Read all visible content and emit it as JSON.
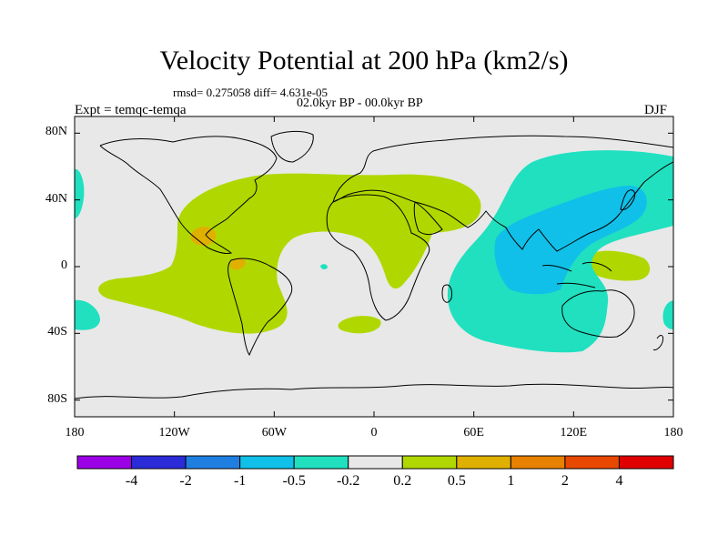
{
  "figure": {
    "title": "Velocity Potential at 200 hPa (km2/s)",
    "stats_text": "rmsd= 0.275058 diff= 4.631e-05",
    "experiment_text": "Expt = temqc-temqa",
    "period_text": "02.0kyr BP - 00.0kyr BP",
    "season": "DJF"
  },
  "map": {
    "projection": "cylindrical-equidistant",
    "lon_range": [
      -180,
      180
    ],
    "lat_range": [
      -90,
      90
    ],
    "lat_ticks": [
      {
        "value": 80,
        "label": "80N"
      },
      {
        "value": 40,
        "label": "40N"
      },
      {
        "value": 0,
        "label": "0"
      },
      {
        "value": -40,
        "label": "40S"
      },
      {
        "value": -80,
        "label": "80S"
      }
    ],
    "lon_ticks": [
      {
        "value": -180,
        "label": "180"
      },
      {
        "value": -120,
        "label": "120W"
      },
      {
        "value": -60,
        "label": "60W"
      },
      {
        "value": 0,
        "label": "0"
      },
      {
        "value": 60,
        "label": "60E"
      },
      {
        "value": 120,
        "label": "120E"
      },
      {
        "value": 180,
        "label": "180"
      }
    ],
    "background_color": "#e8e8e8",
    "coastline_color": "#000000"
  },
  "colorbar": {
    "colors": [
      "#9b00e6",
      "#2b2bd8",
      "#1f7fe0",
      "#10c0e8",
      "#20e0c0",
      "#e8e8e8",
      "#b0d800",
      "#e0b000",
      "#e88000",
      "#e84800",
      "#e00000"
    ],
    "labels": [
      "-4",
      "-2",
      "-1",
      "-0.5",
      "-0.2",
      "0.2",
      "0.5",
      "1",
      "2",
      "4"
    ]
  },
  "fields": [
    {
      "name": "americas-atlantic-positive",
      "color": "#b0d800"
    },
    {
      "name": "africa-south-atlantic-positive",
      "color": "#b0d800"
    },
    {
      "name": "indian-west-pacific-negative",
      "color": "#20e0c0"
    },
    {
      "name": "maritime-asia-strong-negative",
      "color": "#10c0e8"
    },
    {
      "name": "central-america-high-positive",
      "color": "#e0b000"
    }
  ]
}
